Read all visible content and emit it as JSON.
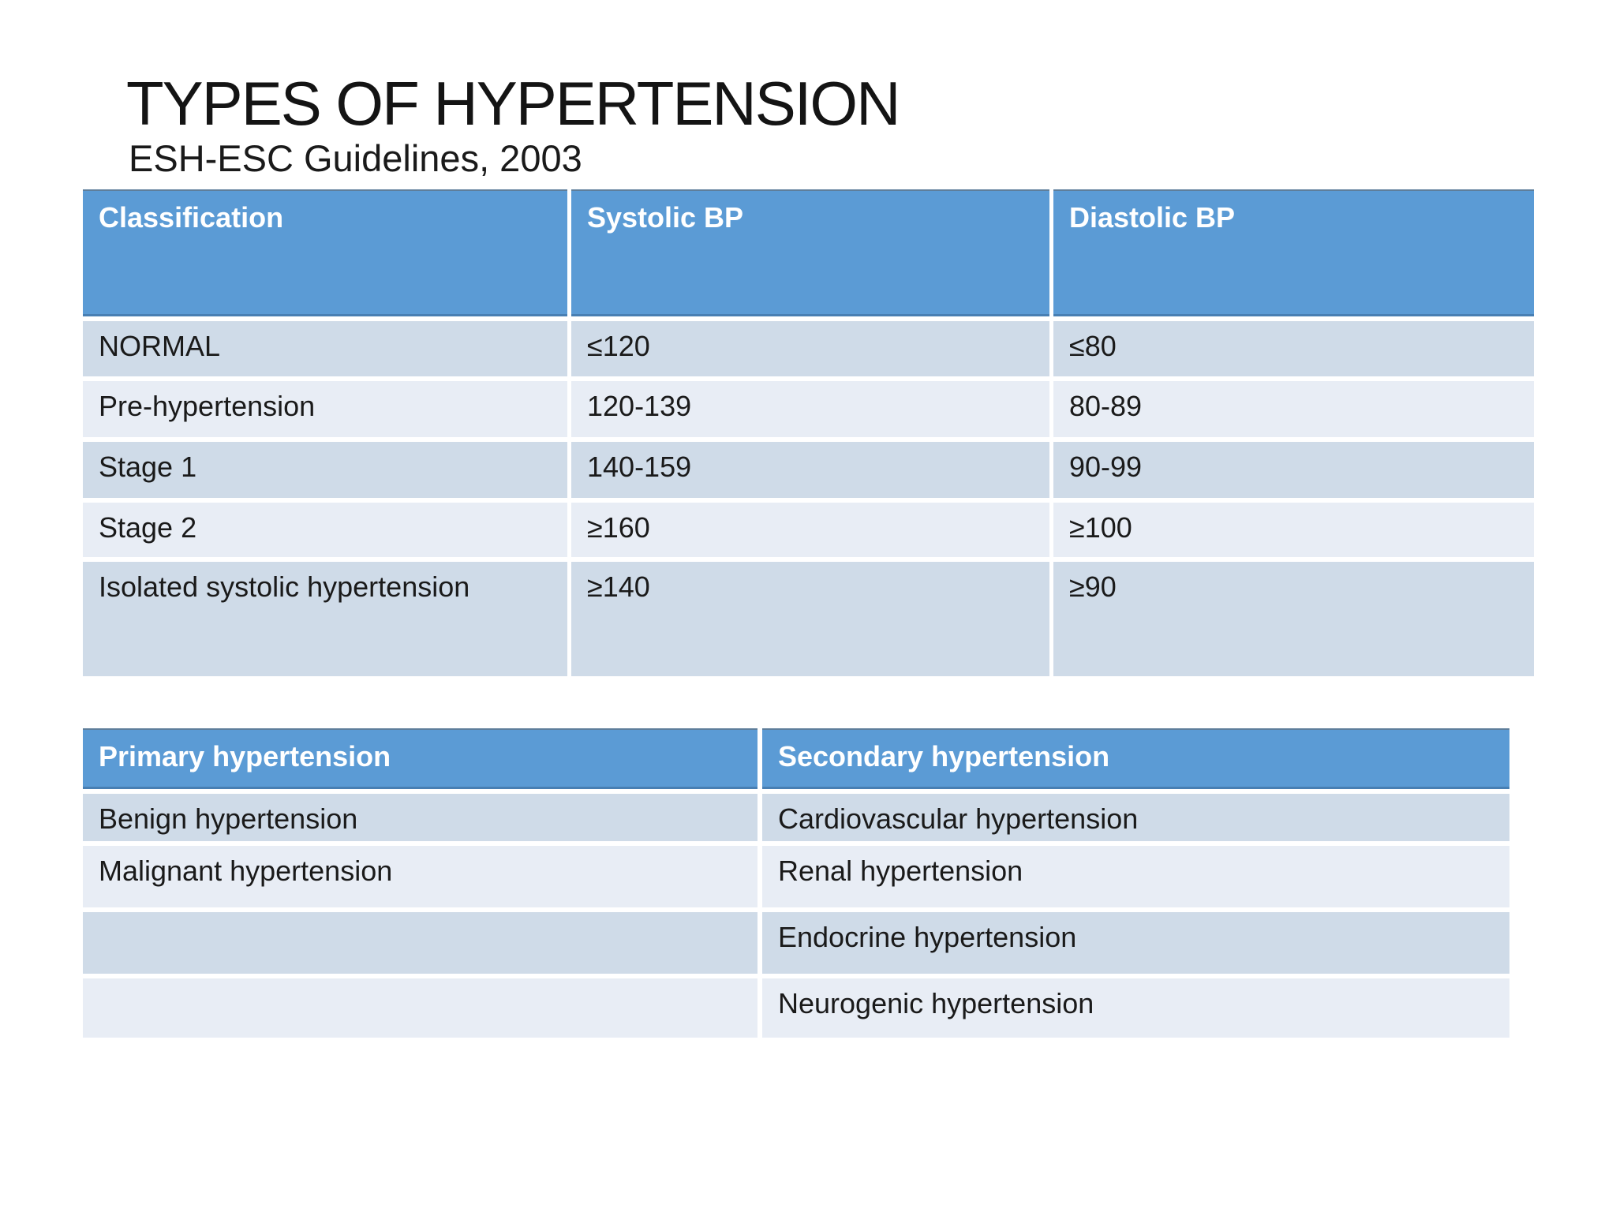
{
  "slide": {
    "title": "TYPES OF HYPERTENSION",
    "subtitle": "ESH-ESC Guidelines, 2003"
  },
  "colors": {
    "header_blue": "#5b9bd5",
    "header_edge_dark": "#4a7fb5",
    "band_dark": "#cfdbe8",
    "band_light": "#e8edf5",
    "header_text": "#ffffff",
    "body_text": "#1a1a1a",
    "background": "#ffffff"
  },
  "bp_table": {
    "columns": [
      "Classification",
      "Systolic BP",
      "Diastolic BP"
    ],
    "rows": [
      [
        "NORMAL",
        "≤120",
        "≤80"
      ],
      [
        "Pre-hypertension",
        "120-139",
        "80-89"
      ],
      [
        "Stage 1",
        "140-159",
        "90-99"
      ],
      [
        "Stage 2",
        "≥160",
        "≥100"
      ],
      [
        "Isolated systolic hypertension",
        "≥140",
        "≥90"
      ]
    ]
  },
  "types_table": {
    "columns": [
      "Primary hypertension",
      "Secondary hypertension"
    ],
    "rows": [
      [
        "Benign hypertension",
        "Cardiovascular hypertension"
      ],
      [
        "Malignant hypertension",
        "Renal hypertension"
      ],
      [
        "",
        "Endocrine hypertension"
      ],
      [
        "",
        "Neurogenic hypertension"
      ]
    ]
  }
}
